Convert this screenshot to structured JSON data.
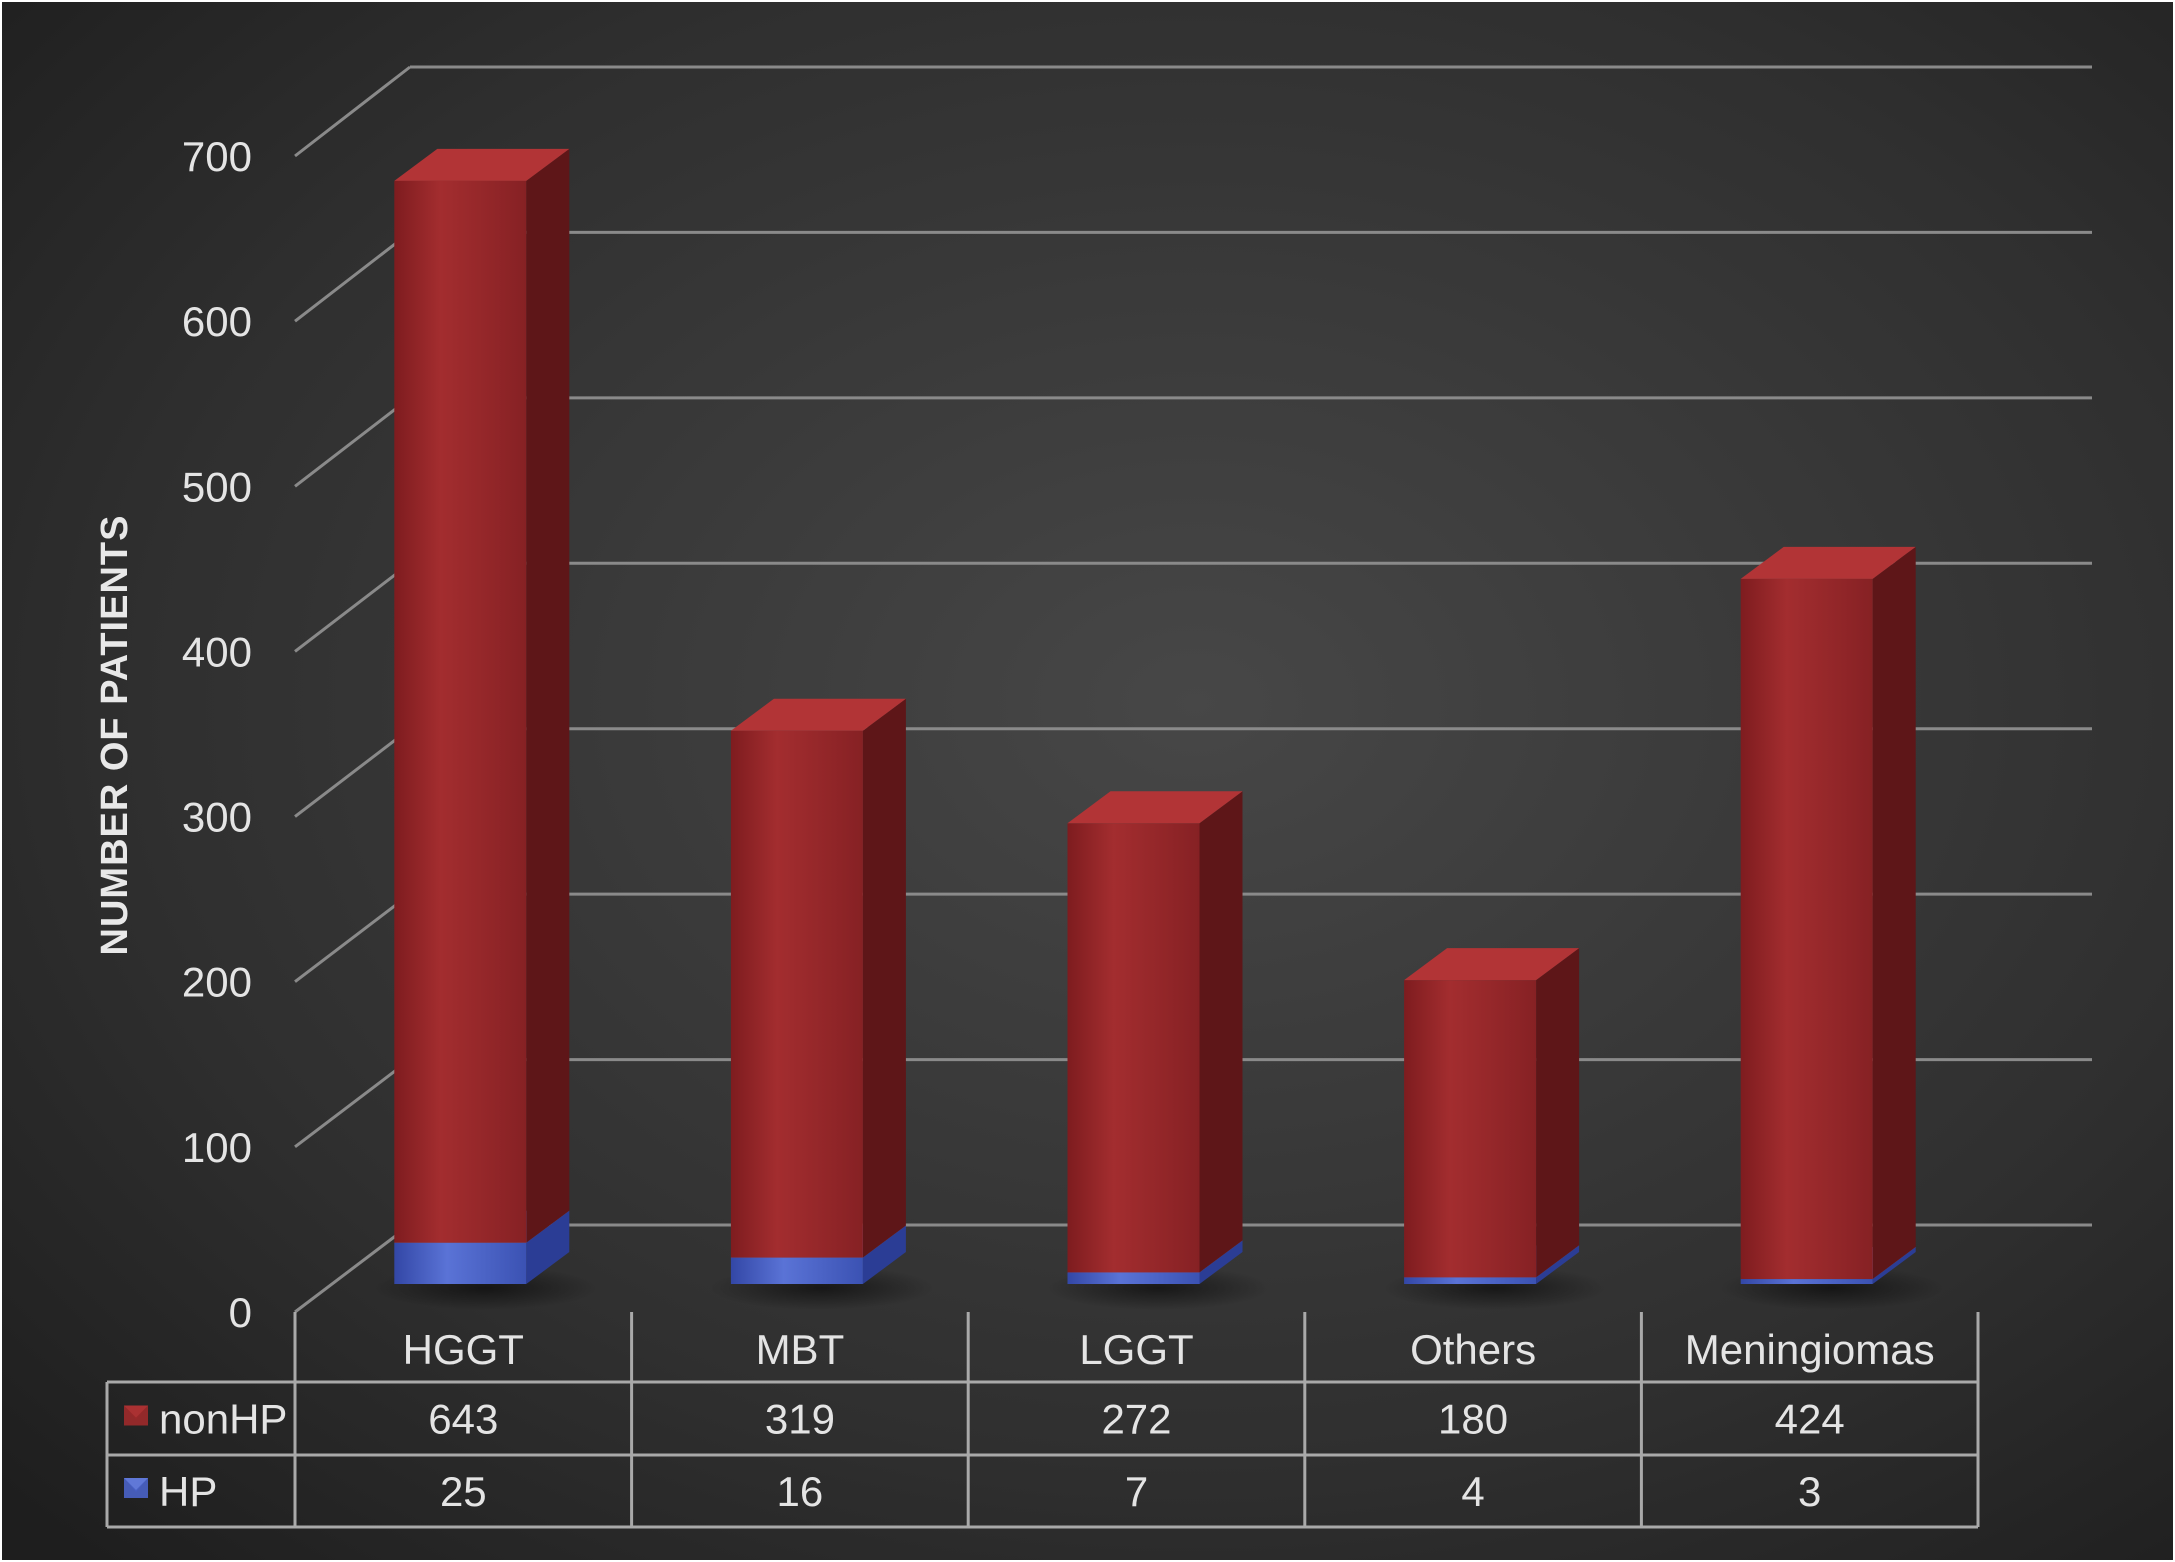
{
  "chart_data": {
    "type": "bar",
    "stacked": true,
    "style": "3d",
    "ylabel": "NUMBER OF PATIENTS",
    "ylim": [
      0,
      700
    ],
    "yticks": [
      0,
      100,
      200,
      300,
      400,
      500,
      600,
      700
    ],
    "grid": true,
    "legend_placement": "data-table",
    "categories": [
      "HGGT",
      "MBT",
      "LGGT",
      "Others",
      "Meningiomas"
    ],
    "series": [
      {
        "name": "nonHP",
        "color": "#9e2a2b",
        "values": [
          643,
          319,
          272,
          180,
          424
        ]
      },
      {
        "name": "HP",
        "color": "#4a63c8",
        "values": [
          25,
          16,
          7,
          4,
          3
        ]
      }
    ],
    "data_table": true
  }
}
